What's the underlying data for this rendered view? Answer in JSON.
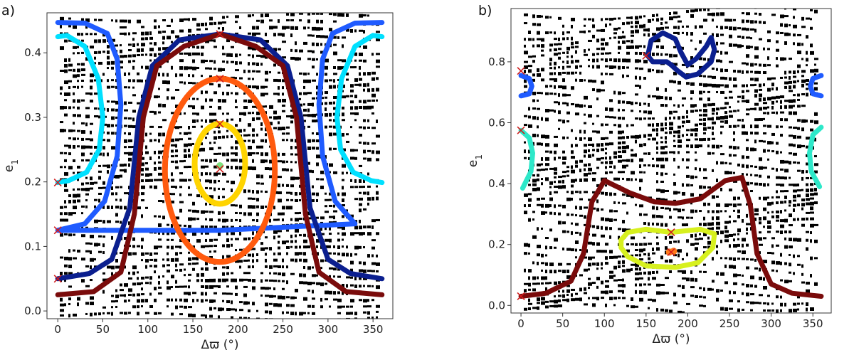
{
  "chart_data": [
    {
      "panel_label": "a)",
      "type": "line",
      "xlabel": "Δϖ (°)",
      "ylabel": "e1",
      "xlim": [
        -12,
        372
      ],
      "ylim": [
        -0.012,
        0.462
      ],
      "xticks": [
        0,
        50,
        100,
        150,
        200,
        250,
        300,
        350
      ],
      "yticks": [
        0.0,
        0.1,
        0.2,
        0.3,
        0.4
      ],
      "grid": false,
      "background": "black and white scatter of trajectory points",
      "series": [
        {
          "color": "#00e0ff",
          "type": "line",
          "points": [
            [
              0,
              0.425
            ],
            [
              10,
              0.427
            ],
            [
              30,
              0.41
            ],
            [
              45,
              0.36
            ],
            [
              50,
              0.3
            ],
            [
              46,
              0.25
            ],
            [
              32,
              0.215
            ],
            [
              12,
              0.202
            ],
            [
              0,
              0.199
            ]
          ]
        },
        {
          "color": "#00e0ff",
          "type": "line",
          "points": [
            [
              360,
              0.425
            ],
            [
              350,
              0.427
            ],
            [
              330,
              0.41
            ],
            [
              315,
              0.36
            ],
            [
              310,
              0.3
            ],
            [
              314,
              0.25
            ],
            [
              328,
              0.215
            ],
            [
              348,
              0.202
            ],
            [
              360,
              0.199
            ]
          ]
        },
        {
          "color": "#1f5bff",
          "type": "line",
          "points": [
            [
              0,
              0.447
            ],
            [
              30,
              0.446
            ],
            [
              55,
              0.43
            ],
            [
              66,
              0.39
            ],
            [
              70,
              0.32
            ],
            [
              66,
              0.24
            ],
            [
              52,
              0.17
            ],
            [
              30,
              0.135
            ],
            [
              0,
              0.125
            ],
            [
              180,
              0.125
            ],
            [
              330,
              0.135
            ],
            [
              308,
              0.17
            ],
            [
              294,
              0.24
            ],
            [
              290,
              0.32
            ],
            [
              294,
              0.39
            ],
            [
              305,
              0.43
            ],
            [
              330,
              0.446
            ],
            [
              360,
              0.447
            ]
          ]
        },
        {
          "color": "#0b1f8f",
          "type": "line",
          "points": [
            [
              0,
              0.05
            ],
            [
              35,
              0.058
            ],
            [
              60,
              0.08
            ],
            [
              80,
              0.16
            ],
            [
              90,
              0.3
            ],
            [
              105,
              0.38
            ],
            [
              135,
              0.42
            ],
            [
              180,
              0.429
            ],
            [
              225,
              0.42
            ],
            [
              255,
              0.38
            ],
            [
              270,
              0.3
            ],
            [
              280,
              0.16
            ],
            [
              300,
              0.08
            ],
            [
              325,
              0.058
            ],
            [
              360,
              0.05
            ]
          ]
        },
        {
          "color": "#7a0b0b",
          "type": "line",
          "points": [
            [
              0,
              0.025
            ],
            [
              40,
              0.03
            ],
            [
              70,
              0.06
            ],
            [
              85,
              0.15
            ],
            [
              95,
              0.3
            ],
            [
              110,
              0.38
            ],
            [
              140,
              0.41
            ],
            [
              180,
              0.429
            ],
            [
              220,
              0.41
            ],
            [
              250,
              0.38
            ],
            [
              265,
              0.3
            ],
            [
              275,
              0.15
            ],
            [
              290,
              0.06
            ],
            [
              320,
              0.03
            ],
            [
              360,
              0.025
            ]
          ]
        },
        {
          "color": "#ff5a0e",
          "type": "ellipse",
          "center": [
            180,
            0.218
          ],
          "rx": 61,
          "ry": 0.142
        },
        {
          "color": "#ffd400",
          "type": "ellipse",
          "center": [
            180,
            0.228
          ],
          "rx": 28,
          "ry": 0.062
        }
      ],
      "markers_x": [
        [
          0,
          0.199
        ],
        [
          0,
          0.125
        ],
        [
          0,
          0.05
        ],
        [
          180,
          0.429
        ],
        [
          180,
          0.36
        ],
        [
          180,
          0.29
        ],
        [
          180,
          0.22
        ]
      ],
      "dots": [
        [
          180,
          0.225
        ]
      ]
    },
    {
      "panel_label": "b)",
      "type": "line",
      "xlabel": "Δϖ (°)",
      "ylabel": "e1",
      "xlim": [
        -12,
        372
      ],
      "ylim": [
        -0.025,
        0.975
      ],
      "xticks": [
        0,
        50,
        100,
        150,
        200,
        250,
        300,
        350
      ],
      "yticks": [
        0.0,
        0.2,
        0.4,
        0.6,
        0.8
      ],
      "grid": false,
      "background": "black and white scatter of trajectory points",
      "series": [
        {
          "color": "#0b1f8f",
          "type": "line",
          "points": [
            [
              152,
              0.82
            ],
            [
              156,
              0.87
            ],
            [
              170,
              0.895
            ],
            [
              185,
              0.875
            ],
            [
              192,
              0.83
            ],
            [
              200,
              0.79
            ],
            [
              210,
              0.81
            ],
            [
              222,
              0.85
            ],
            [
              228,
              0.88
            ],
            [
              232,
              0.84
            ],
            [
              228,
              0.8
            ],
            [
              212,
              0.76
            ],
            [
              198,
              0.75
            ],
            [
              188,
              0.77
            ],
            [
              180,
              0.79
            ],
            [
              175,
              0.8
            ],
            [
              165,
              0.8
            ],
            [
              158,
              0.8
            ],
            [
              152,
              0.82
            ]
          ]
        },
        {
          "color": "#1f5bff",
          "type": "line",
          "points": [
            [
              0,
              0.755
            ],
            [
              10,
              0.745
            ],
            [
              13,
              0.72
            ],
            [
              10,
              0.695
            ],
            [
              0,
              0.688
            ]
          ]
        },
        {
          "color": "#1f5bff",
          "type": "line",
          "points": [
            [
              360,
              0.755
            ],
            [
              350,
              0.745
            ],
            [
              347,
              0.72
            ],
            [
              350,
              0.695
            ],
            [
              360,
              0.688
            ]
          ]
        },
        {
          "color": "#2de8c9",
          "type": "line",
          "points": [
            [
              0,
              0.575
            ],
            [
              10,
              0.55
            ],
            [
              14,
              0.5
            ],
            [
              12,
              0.44
            ],
            [
              2,
              0.385
            ]
          ]
        },
        {
          "color": "#2de8c9",
          "type": "line",
          "points": [
            [
              360,
              0.585
            ],
            [
              350,
              0.56
            ],
            [
              346,
              0.5
            ],
            [
              348,
              0.44
            ],
            [
              358,
              0.39
            ]
          ]
        },
        {
          "color": "#7a0b0b",
          "type": "line",
          "points": [
            [
              0,
              0.03
            ],
            [
              30,
              0.04
            ],
            [
              60,
              0.08
            ],
            [
              75,
              0.17
            ],
            [
              85,
              0.34
            ],
            [
              100,
              0.41
            ],
            [
              130,
              0.37
            ],
            [
              160,
              0.34
            ],
            [
              185,
              0.335
            ],
            [
              215,
              0.35
            ],
            [
              245,
              0.41
            ],
            [
              265,
              0.42
            ],
            [
              275,
              0.33
            ],
            [
              283,
              0.17
            ],
            [
              300,
              0.07
            ],
            [
              325,
              0.04
            ],
            [
              360,
              0.03
            ]
          ]
        },
        {
          "color": "#d7f01e",
          "type": "line",
          "points": [
            [
              120,
              0.215
            ],
            [
              128,
              0.24
            ],
            [
              150,
              0.25
            ],
            [
              180,
              0.24
            ],
            [
              215,
              0.25
            ],
            [
              232,
              0.235
            ],
            [
              230,
              0.19
            ],
            [
              212,
              0.14
            ],
            [
              185,
              0.125
            ],
            [
              150,
              0.13
            ],
            [
              128,
              0.16
            ],
            [
              120,
              0.19
            ],
            [
              120,
              0.215
            ]
          ]
        }
      ],
      "markers_x": [
        [
          0,
          0.77
        ],
        [
          0,
          0.575
        ],
        [
          0,
          0.03
        ],
        [
          150,
          0.82
        ],
        [
          180,
          0.24
        ],
        [
          180,
          0.175
        ]
      ],
      "dots": [
        [
          178,
          0.175
        ],
        [
          183,
          0.178
        ]
      ]
    }
  ]
}
